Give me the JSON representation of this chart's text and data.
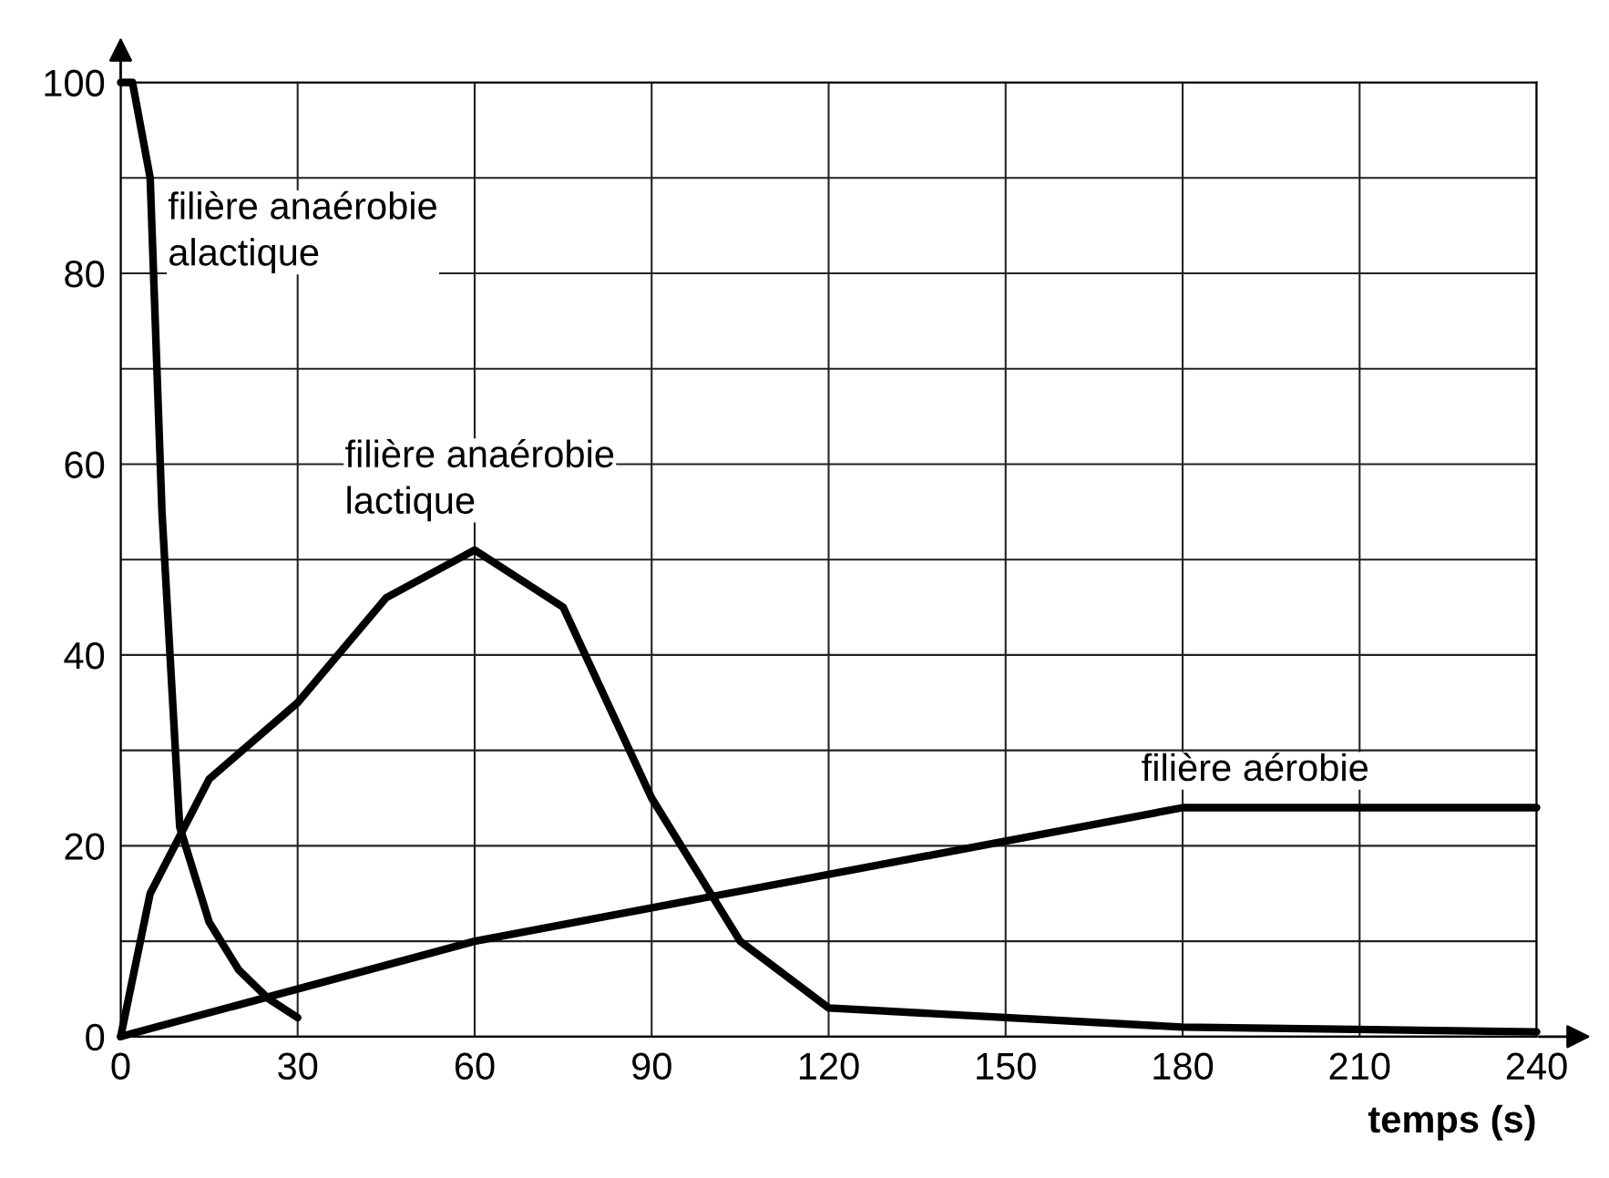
{
  "chart_data": {
    "type": "line",
    "xlabel": "temps (s)",
    "xlim": [
      0,
      240
    ],
    "ylim": [
      0,
      100
    ],
    "xticks": [
      0,
      30,
      60,
      90,
      120,
      150,
      180,
      210,
      240
    ],
    "yticks": [
      0,
      {
        "value": 10,
        "label": null
      },
      20,
      {
        "value": 30,
        "label": null
      },
      40,
      {
        "value": 50,
        "label": null
      },
      60,
      {
        "value": 70,
        "label": null
      },
      80,
      {
        "value": 90,
        "label": null
      },
      100
    ],
    "grid": true,
    "legend": false,
    "marker": "none",
    "line_style": "solid",
    "series": [
      {
        "name": "filière anaérobie\nalactique",
        "color": "#000000",
        "x": [
          0,
          2,
          5,
          7,
          10,
          15,
          20,
          25,
          30
        ],
        "values": [
          100,
          100,
          90,
          55,
          22,
          12,
          7,
          4,
          2
        ]
      },
      {
        "name": "filière anaérobie\nlactique",
        "color": "#000000",
        "x": [
          0,
          5,
          15,
          30,
          45,
          60,
          75,
          90,
          105,
          120,
          180,
          240
        ],
        "values": [
          0,
          15,
          27,
          35,
          46,
          51,
          45,
          25,
          10,
          3,
          1,
          0.5
        ]
      },
      {
        "name": "filière aérobie",
        "color": "#000000",
        "x": [
          0,
          60,
          180,
          240
        ],
        "values": [
          0,
          10,
          24,
          24
        ]
      }
    ]
  }
}
